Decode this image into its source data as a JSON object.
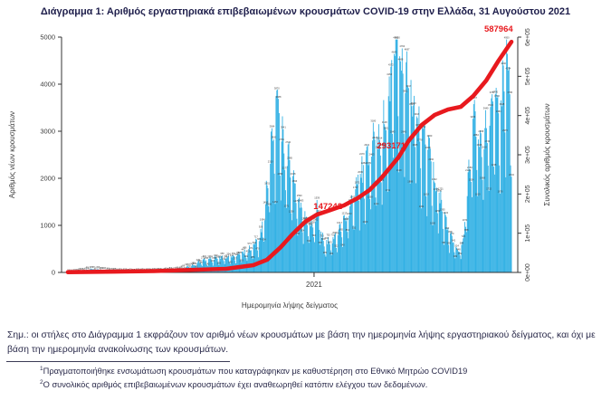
{
  "title": "Διάγραμμα 1: Αριθμός εργαστηριακά επιβεβαιωμένων κρουσμάτων COVID-19 στην Ελλάδα, 31 Αυγούστου 2021",
  "colors": {
    "bar": "#29ADE3",
    "cumulative_line": "#E8191E",
    "annotation_red": "#E8191E",
    "axis_text": "#3c3c3c",
    "bar_label": "#3c3c3c",
    "body_text": "#2b2b4b"
  },
  "chart_data": {
    "type": "bar",
    "title": "Διάγραμμα 1: Αριθμός εργαστηριακά επιβεβαιωμένων κρουσμάτων COVID-19 στην Ελλάδα, 31 Αυγούστου 2021",
    "xlabel": "Ημερομηνία λήψης δείγματος",
    "ylabel_left": "Αριθμός νέων κρουσμάτων",
    "ylabel_right": "Συνολικός αριθμός κρουσμάτων",
    "x_tick_labels": [
      "2021"
    ],
    "ylim_left": [
      0,
      5000
    ],
    "yticks_left": [
      0,
      1000,
      2000,
      3000,
      4000,
      5000
    ],
    "ylim_right": [
      0,
      600000
    ],
    "yticks_right_labels": [
      "0e+00",
      "1e+05",
      "2e+05",
      "3e+05",
      "4e+05",
      "5e+05",
      "6e+05"
    ],
    "grid": false,
    "legend": "none",
    "series": [
      {
        "name": "daily_new_cases_by_sampling_date_approx_envelope",
        "type": "bar",
        "note": "points are [fraction_of_x_axis, new_cases]; individual daily bars in source are sub-pixel, envelope estimated",
        "points": [
          [
            0.0,
            3
          ],
          [
            0.02,
            12
          ],
          [
            0.033,
            35
          ],
          [
            0.051,
            72
          ],
          [
            0.071,
            60
          ],
          [
            0.098,
            28
          ],
          [
            0.134,
            16
          ],
          [
            0.174,
            22
          ],
          [
            0.208,
            32
          ],
          [
            0.245,
            55
          ],
          [
            0.272,
            115
          ],
          [
            0.301,
            235
          ],
          [
            0.328,
            285
          ],
          [
            0.357,
            315
          ],
          [
            0.384,
            355
          ],
          [
            0.402,
            430
          ],
          [
            0.42,
            560
          ],
          [
            0.433,
            780
          ],
          [
            0.444,
            1250
          ],
          [
            0.455,
            2250
          ],
          [
            0.464,
            2950
          ],
          [
            0.471,
            3520
          ],
          [
            0.478,
            3250
          ],
          [
            0.487,
            2650
          ],
          [
            0.5,
            2200
          ],
          [
            0.513,
            1650
          ],
          [
            0.525,
            1280
          ],
          [
            0.54,
            1120
          ],
          [
            0.552,
            950
          ],
          [
            0.565,
            1400
          ],
          [
            0.572,
            760
          ],
          [
            0.578,
            580
          ],
          [
            0.59,
            620
          ],
          [
            0.603,
            760
          ],
          [
            0.616,
            920
          ],
          [
            0.628,
            1220
          ],
          [
            0.641,
            1520
          ],
          [
            0.654,
            1900
          ],
          [
            0.666,
            2120
          ],
          [
            0.679,
            2380
          ],
          [
            0.692,
            2600
          ],
          [
            0.704,
            2820
          ],
          [
            0.717,
            3120
          ],
          [
            0.726,
            3620
          ],
          [
            0.733,
            4480
          ],
          [
            0.74,
            4880
          ],
          [
            0.748,
            4320
          ],
          [
            0.758,
            4020
          ],
          [
            0.771,
            3650
          ],
          [
            0.784,
            3320
          ],
          [
            0.796,
            3020
          ],
          [
            0.809,
            2520
          ],
          [
            0.822,
            2120
          ],
          [
            0.834,
            1720
          ],
          [
            0.847,
            1220
          ],
          [
            0.86,
            820
          ],
          [
            0.872,
            560
          ],
          [
            0.885,
            460
          ],
          [
            0.892,
            720
          ],
          [
            0.901,
            1820
          ],
          [
            0.91,
            2820
          ],
          [
            0.919,
            3120
          ],
          [
            0.928,
            2720
          ],
          [
            0.937,
            2920
          ],
          [
            0.946,
            3220
          ],
          [
            0.955,
            3420
          ],
          [
            0.964,
            3620
          ],
          [
            0.973,
            3320
          ],
          [
            0.982,
            4120
          ],
          [
            0.989,
            4620
          ],
          [
            0.995,
            3720
          ],
          [
            1.0,
            3480
          ]
        ]
      },
      {
        "name": "cumulative_confirmed_cases_approx",
        "type": "line",
        "note": "points are [fraction_of_x_axis, cumulative_cases] on right axis",
        "points": [
          [
            0.0,
            800
          ],
          [
            0.194,
            3500
          ],
          [
            0.357,
            9200
          ],
          [
            0.418,
            18500
          ],
          [
            0.449,
            32300
          ],
          [
            0.48,
            64600
          ],
          [
            0.506,
            96900
          ],
          [
            0.535,
            129200
          ],
          [
            0.561,
            147242
          ],
          [
            0.592,
            159000
          ],
          [
            0.622,
            170800
          ],
          [
            0.653,
            189200
          ],
          [
            0.68,
            210000
          ],
          [
            0.708,
            242300
          ],
          [
            0.735,
            279200
          ],
          [
            0.745,
            293100
          ],
          [
            0.769,
            336900
          ],
          [
            0.798,
            376200
          ],
          [
            0.827,
            401500
          ],
          [
            0.857,
            415400
          ],
          [
            0.886,
            422300
          ],
          [
            0.914,
            450000
          ],
          [
            0.943,
            489200
          ],
          [
            0.971,
            540000
          ],
          [
            1.0,
            587964
          ]
        ]
      }
    ],
    "annotations": [
      {
        "text": "147242",
        "fx": 0.586,
        "value_right_axis": 168500
      },
      {
        "text": "293171",
        "fx": 0.729,
        "value_right_axis": 323000
      },
      {
        "text": "587964",
        "fx": 0.971,
        "value_right_axis": 621000
      }
    ]
  },
  "footnotes": {
    "note": "Σημ.: οι στήλες στο Διάγραμμα 1 εκφράζουν τον αριθμό νέων κρουσμάτων με βάση την ημερομηνία λήψης εργαστηριακού δείγματος, και όχι με βάση την ημερομηνία ανακοίνωσης των κρουσμάτων.",
    "items": [
      {
        "sup": "1",
        "text": "Πραγματοποιήθηκε ενσωμάτωση κρουσμάτων που καταγράφηκαν με καθυστέρηση στο Εθνικό Μητρώο COVID19"
      },
      {
        "sup": "2",
        "text": "Ο συνολικός αριθμός επιβεβαιωμένων κρουσμάτων έχει αναθεωρηθεί κατόπιν ελέγχου των δεδομένων."
      }
    ]
  }
}
